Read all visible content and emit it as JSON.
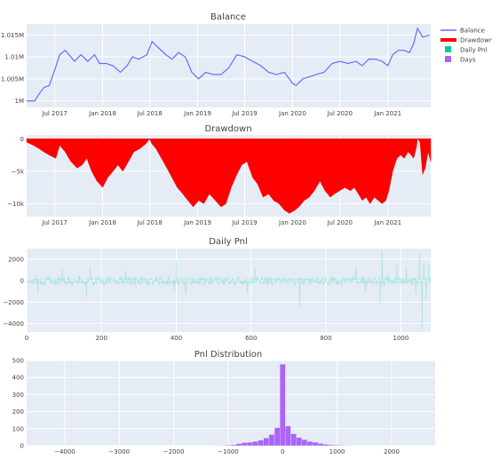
{
  "legend": [
    {
      "name": "Balance",
      "color": "#636efa",
      "kind": "line"
    },
    {
      "name": "Drawdown",
      "color": "#ff0000",
      "kind": "thick"
    },
    {
      "name": "Daily Pnl",
      "color": "#00cc96",
      "kind": "swatch"
    },
    {
      "name": "Days",
      "color": "#ab63fa",
      "kind": "swatch"
    }
  ],
  "colors": {
    "plot_bg": "#e5ecf6",
    "grid": "#ffffff",
    "text": "#444444"
  },
  "chart_data": [
    {
      "id": "balance",
      "type": "line",
      "title": "Balance",
      "x_kind": "date",
      "xlim": [
        "2017-03-15",
        "2021-06-15"
      ],
      "ylim": [
        998500,
        1017500
      ],
      "xticks": [
        {
          "value": "2017-07-01",
          "label": "Jul 2017"
        },
        {
          "value": "2018-01-01",
          "label": "Jan 2018"
        },
        {
          "value": "2018-07-01",
          "label": "Jul 2018"
        },
        {
          "value": "2019-01-01",
          "label": "Jan 2019"
        },
        {
          "value": "2019-07-01",
          "label": "Jul 2019"
        },
        {
          "value": "2020-01-01",
          "label": "Jan 2020"
        },
        {
          "value": "2020-07-01",
          "label": "Jul 2020"
        },
        {
          "value": "2021-01-01",
          "label": "Jan 2021"
        }
      ],
      "yticks": [
        {
          "value": 1000000,
          "label": "1M"
        },
        {
          "value": 1005000,
          "label": "1.005M"
        },
        {
          "value": 1010000,
          "label": "1.01M"
        },
        {
          "value": 1015000,
          "label": "1.015M"
        }
      ],
      "series": [
        {
          "name": "Balance",
          "color": "#636efa",
          "x": [
            "2017-03-15",
            "2017-04-15",
            "2017-05-01",
            "2017-05-20",
            "2017-06-10",
            "2017-07-01",
            "2017-07-20",
            "2017-08-10",
            "2017-09-01",
            "2017-09-15",
            "2017-10-10",
            "2017-11-05",
            "2017-12-01",
            "2017-12-20",
            "2018-01-15",
            "2018-02-10",
            "2018-03-10",
            "2018-04-05",
            "2018-04-25",
            "2018-05-20",
            "2018-06-20",
            "2018-07-10",
            "2018-08-05",
            "2018-09-01",
            "2018-09-25",
            "2018-10-20",
            "2018-11-15",
            "2018-12-10",
            "2019-01-05",
            "2019-02-01",
            "2019-03-01",
            "2019-04-01",
            "2019-05-01",
            "2019-06-01",
            "2019-07-01",
            "2019-08-01",
            "2019-09-01",
            "2019-10-01",
            "2019-11-01",
            "2019-12-01",
            "2020-01-01",
            "2020-01-15",
            "2020-02-10",
            "2020-03-05",
            "2020-04-01",
            "2020-05-01",
            "2020-06-01",
            "2020-07-01",
            "2020-08-01",
            "2020-09-01",
            "2020-09-25",
            "2020-10-20",
            "2020-11-15",
            "2020-12-10",
            "2021-01-01",
            "2021-01-20",
            "2021-02-10",
            "2021-03-05",
            "2021-03-25",
            "2021-04-10",
            "2021-04-25",
            "2021-05-15",
            "2021-06-10"
          ],
          "y": [
            1000000,
            1000000,
            1001500,
            1003000,
            1003500,
            1007000,
            1010500,
            1011500,
            1010000,
            1009000,
            1010500,
            1009000,
            1010500,
            1008500,
            1008500,
            1008000,
            1006500,
            1008000,
            1010000,
            1009500,
            1010500,
            1013500,
            1012000,
            1010500,
            1009500,
            1011000,
            1010000,
            1006500,
            1005000,
            1006500,
            1006000,
            1006000,
            1007500,
            1010500,
            1010000,
            1009000,
            1008000,
            1006500,
            1006000,
            1006500,
            1004000,
            1003500,
            1005000,
            1005500,
            1006000,
            1006500,
            1008500,
            1009000,
            1008500,
            1009000,
            1008000,
            1009500,
            1009500,
            1009000,
            1008000,
            1010500,
            1011500,
            1011500,
            1011000,
            1013000,
            1016500,
            1014500,
            1015000
          ]
        }
      ]
    },
    {
      "id": "drawdown",
      "type": "area",
      "title": "Drawdown",
      "x_kind": "date",
      "xlim": [
        "2017-03-15",
        "2021-06-15"
      ],
      "ylim": [
        -12000,
        600
      ],
      "xticks": [
        {
          "value": "2017-07-01",
          "label": "Jul 2017"
        },
        {
          "value": "2018-01-01",
          "label": "Jan 2018"
        },
        {
          "value": "2018-07-01",
          "label": "Jul 2018"
        },
        {
          "value": "2019-01-01",
          "label": "Jan 2019"
        },
        {
          "value": "2019-07-01",
          "label": "Jul 2019"
        },
        {
          "value": "2020-01-01",
          "label": "Jan 2020"
        },
        {
          "value": "2020-07-01",
          "label": "Jul 2020"
        },
        {
          "value": "2021-01-01",
          "label": "Jan 2021"
        }
      ],
      "yticks": [
        {
          "value": 0,
          "label": "0"
        },
        {
          "value": -5000,
          "label": "−5k"
        },
        {
          "value": -10000,
          "label": "−10k"
        }
      ],
      "series": [
        {
          "name": "Drawdown",
          "color": "#ff0000",
          "x": [
            "2017-03-15",
            "2017-04-10",
            "2017-05-01",
            "2017-05-20",
            "2017-06-10",
            "2017-07-05",
            "2017-07-20",
            "2017-08-10",
            "2017-09-01",
            "2017-09-25",
            "2017-10-15",
            "2017-11-01",
            "2017-11-20",
            "2017-12-10",
            "2018-01-01",
            "2018-01-20",
            "2018-02-10",
            "2018-03-01",
            "2018-03-20",
            "2018-04-10",
            "2018-05-01",
            "2018-05-25",
            "2018-06-15",
            "2018-07-01",
            "2018-07-10",
            "2018-07-25",
            "2018-08-15",
            "2018-09-05",
            "2018-09-25",
            "2018-10-15",
            "2018-11-05",
            "2018-11-25",
            "2018-12-15",
            "2019-01-05",
            "2019-01-25",
            "2019-02-15",
            "2019-03-10",
            "2019-04-01",
            "2019-04-20",
            "2019-05-10",
            "2019-06-01",
            "2019-06-20",
            "2019-07-10",
            "2019-08-01",
            "2019-08-20",
            "2019-09-10",
            "2019-10-01",
            "2019-10-20",
            "2019-11-10",
            "2019-12-01",
            "2019-12-20",
            "2020-01-10",
            "2020-01-25",
            "2020-02-15",
            "2020-03-05",
            "2020-03-25",
            "2020-04-15",
            "2020-05-05",
            "2020-05-25",
            "2020-06-10",
            "2020-06-30",
            "2020-07-20",
            "2020-08-10",
            "2020-08-25",
            "2020-09-10",
            "2020-09-25",
            "2020-10-10",
            "2020-10-25",
            "2020-11-10",
            "2020-11-25",
            "2020-12-10",
            "2020-12-25",
            "2021-01-05",
            "2021-01-20",
            "2021-02-05",
            "2021-02-20",
            "2021-03-05",
            "2021-03-20",
            "2021-04-01",
            "2021-04-10",
            "2021-04-20",
            "2021-04-25",
            "2021-05-05",
            "2021-05-15",
            "2021-05-25",
            "2021-06-05",
            "2021-06-15"
          ],
          "y": [
            -500,
            -1000,
            -1500,
            -2000,
            -2500,
            -3000,
            -1000,
            -2000,
            -3500,
            -4500,
            -4000,
            -3000,
            -5000,
            -6500,
            -7500,
            -6000,
            -5000,
            -4000,
            -5000,
            -3500,
            -2000,
            -1500,
            -800,
            0,
            -800,
            -1500,
            -3000,
            -4500,
            -6000,
            -7500,
            -8500,
            -9500,
            -10500,
            -9500,
            -10000,
            -8500,
            -9500,
            -10500,
            -10000,
            -7500,
            -5500,
            -4000,
            -3500,
            -6000,
            -7000,
            -9000,
            -8500,
            -9500,
            -10000,
            -11000,
            -11500,
            -11000,
            -10500,
            -9500,
            -9000,
            -8000,
            -6500,
            -8000,
            -9000,
            -8500,
            -8000,
            -7500,
            -8000,
            -7500,
            -8500,
            -9500,
            -9000,
            -10000,
            -9000,
            -9500,
            -10000,
            -9500,
            -8000,
            -5000,
            -3000,
            -2500,
            -3000,
            -2000,
            -2500,
            -3000,
            -1500,
            0,
            -500,
            -5500,
            -4500,
            -2000,
            -3500
          ]
        }
      ]
    },
    {
      "id": "daily_pnl",
      "type": "line",
      "title": "Daily Pnl",
      "xlim": [
        0,
        1080
      ],
      "ylim": [
        -4800,
        3000
      ],
      "xticks": [
        {
          "value": 0,
          "label": "0"
        },
        {
          "value": 200,
          "label": "200"
        },
        {
          "value": 400,
          "label": "400"
        },
        {
          "value": 600,
          "label": "600"
        },
        {
          "value": 800,
          "label": "800"
        },
        {
          "value": 1000,
          "label": "1000"
        }
      ],
      "yticks": [
        {
          "value": 2000,
          "label": "2000"
        },
        {
          "value": 0,
          "label": "0"
        },
        {
          "value": -2000,
          "label": "−2000"
        },
        {
          "value": -4000,
          "label": "−4000"
        }
      ],
      "series": [
        {
          "name": "Daily Pnl",
          "color": "#00cc96",
          "opacity": 0.25,
          "n_points": 1080,
          "typical_amplitude": 600,
          "extremes": [
            {
              "x": 30,
              "y": -1300
            },
            {
              "x": 95,
              "y": 1200
            },
            {
              "x": 160,
              "y": -1500
            },
            {
              "x": 170,
              "y": 1400
            },
            {
              "x": 265,
              "y": 900
            },
            {
              "x": 395,
              "y": -1000
            },
            {
              "x": 400,
              "y": 1900
            },
            {
              "x": 425,
              "y": -1300
            },
            {
              "x": 590,
              "y": -1200
            },
            {
              "x": 610,
              "y": 1300
            },
            {
              "x": 730,
              "y": -2600
            },
            {
              "x": 880,
              "y": 1300
            },
            {
              "x": 905,
              "y": -1000
            },
            {
              "x": 945,
              "y": -2100
            },
            {
              "x": 950,
              "y": 2800
            },
            {
              "x": 990,
              "y": 1500
            },
            {
              "x": 1015,
              "y": 1300
            },
            {
              "x": 1040,
              "y": -1300
            },
            {
              "x": 1050,
              "y": 2600
            },
            {
              "x": 1057,
              "y": -4600
            },
            {
              "x": 1062,
              "y": 1800
            },
            {
              "x": 1068,
              "y": -1700
            },
            {
              "x": 1075,
              "y": 1500
            }
          ]
        }
      ]
    },
    {
      "id": "pnl_distribution",
      "type": "bar",
      "title": "Pnl Distribution",
      "xlim": [
        -4700,
        2800
      ],
      "ylim": [
        0,
        500
      ],
      "xticks": [
        {
          "value": -4000,
          "label": "−4000"
        },
        {
          "value": -3000,
          "label": "−3000"
        },
        {
          "value": -2000,
          "label": "−2000"
        },
        {
          "value": -1000,
          "label": "−1000"
        },
        {
          "value": 0,
          "label": "0"
        },
        {
          "value": 1000,
          "label": "1000"
        },
        {
          "value": 2000,
          "label": "2000"
        }
      ],
      "yticks": [
        {
          "value": 0,
          "label": "0"
        },
        {
          "value": 100,
          "label": "100"
        },
        {
          "value": 200,
          "label": "200"
        },
        {
          "value": 300,
          "label": "300"
        },
        {
          "value": 400,
          "label": "400"
        },
        {
          "value": 500,
          "label": "500"
        }
      ],
      "series": [
        {
          "name": "Days",
          "color": "#ab63fa",
          "bin_width": 100,
          "bins": [
            -1200,
            -1100,
            -1000,
            -900,
            -800,
            -700,
            -600,
            -500,
            -400,
            -300,
            -200,
            -100,
            0,
            100,
            200,
            300,
            400,
            500,
            600,
            700,
            800,
            900,
            1000,
            1100,
            1200
          ],
          "values": [
            1,
            2,
            3,
            5,
            12,
            18,
            20,
            25,
            32,
            45,
            65,
            105,
            478,
            115,
            70,
            48,
            35,
            25,
            20,
            13,
            8,
            5,
            3,
            2,
            1
          ]
        }
      ]
    }
  ]
}
